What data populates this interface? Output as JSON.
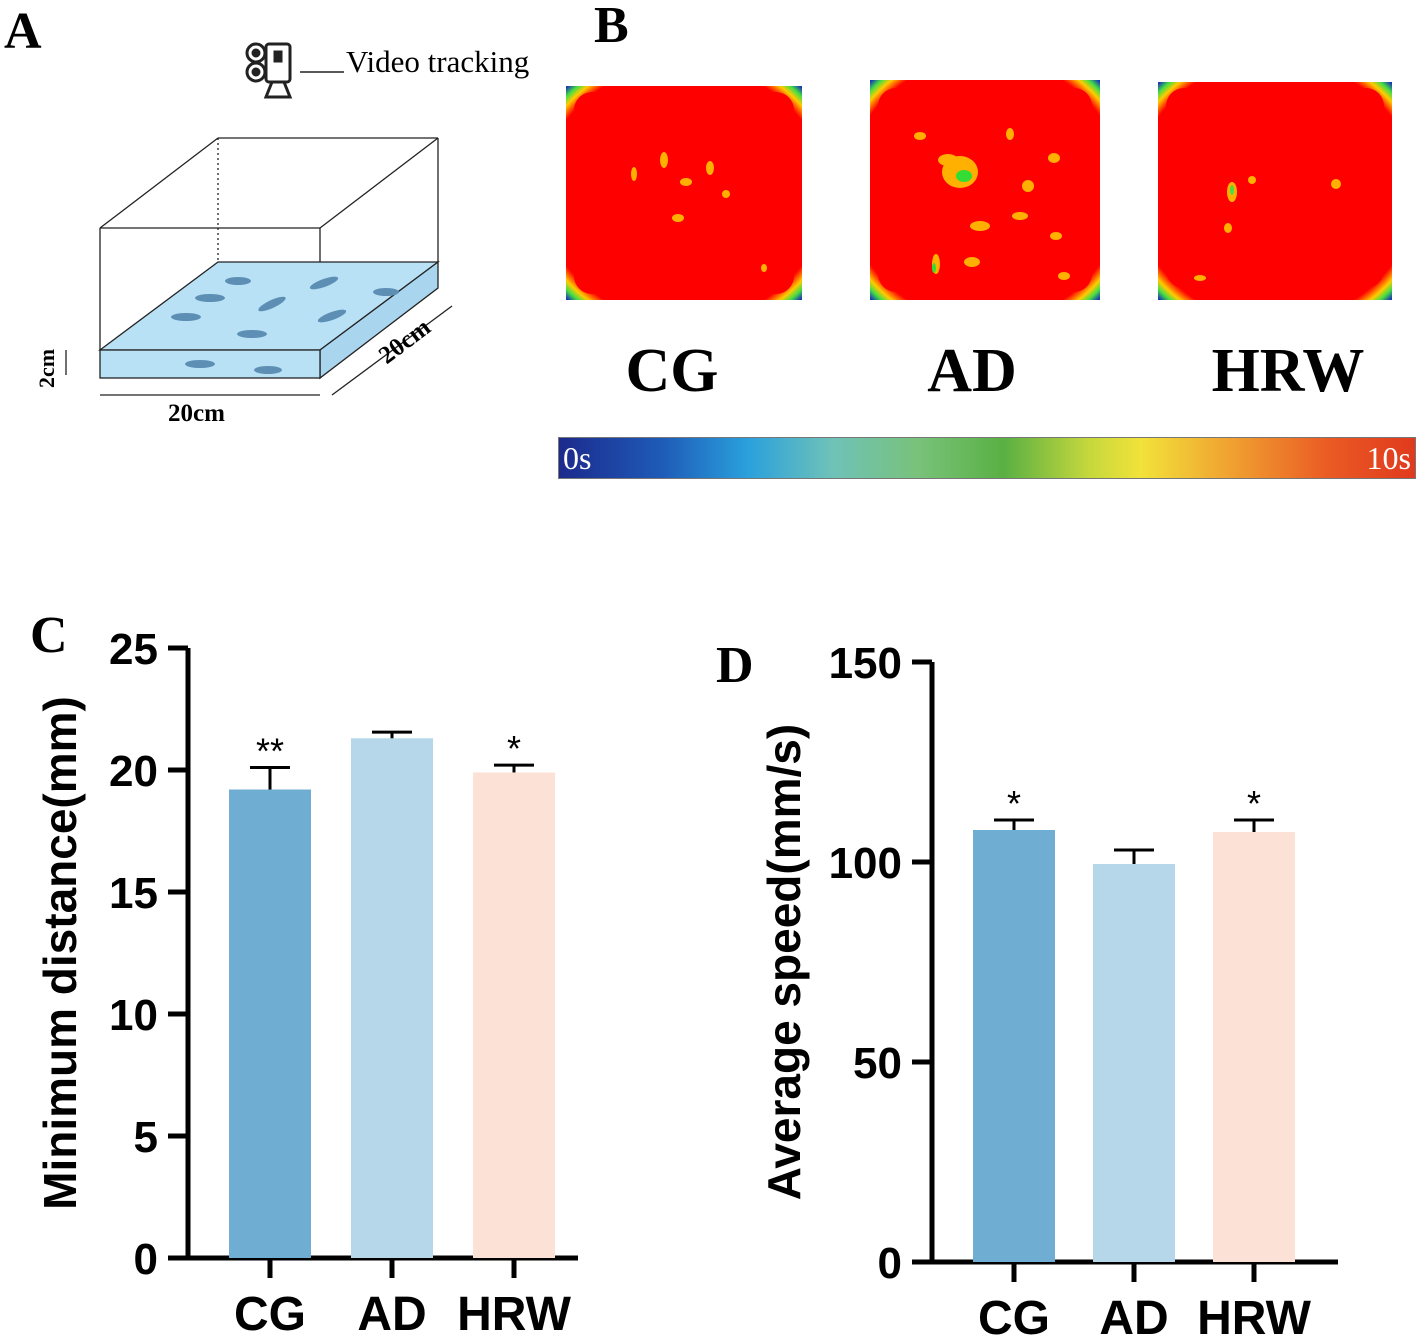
{
  "panels": {
    "a": {
      "letter": "A",
      "camera_label": "Video tracking",
      "tank_width_label": "20cm",
      "tank_depth_label": "20cm",
      "water_height_label": "2cm",
      "camera_icon": "video-camera-icon"
    },
    "b": {
      "letter": "B",
      "heatmaps": [
        "CG",
        "AD",
        "HRW"
      ],
      "colorbar": {
        "min_label": "0s",
        "max_label": "10s"
      }
    },
    "c": {
      "letter": "C"
    },
    "d": {
      "letter": "D"
    }
  },
  "colors": {
    "CG": "#6fadd2",
    "AD": "#b5d7e9",
    "HRW": "#fce2d6",
    "heat_hot": "#ff0000",
    "heat_cold": "#1a3cb0",
    "water": "#b9e1f5"
  },
  "chart_data": [
    {
      "type": "bar",
      "panel": "C",
      "categories": [
        "CG",
        "AD",
        "HRW"
      ],
      "values": [
        19.2,
        21.3,
        19.9
      ],
      "errors": [
        0.9,
        0.25,
        0.3
      ],
      "significance": [
        "**",
        "",
        "*"
      ],
      "ylabel": "Minimum distance(mm)",
      "ylim": [
        0,
        25
      ],
      "yticks": [
        0,
        5,
        10,
        15,
        20,
        25
      ]
    },
    {
      "type": "bar",
      "panel": "D",
      "categories": [
        "CG",
        "AD",
        "HRW"
      ],
      "values": [
        108,
        99.5,
        107.5
      ],
      "errors": [
        2.5,
        3.5,
        3
      ],
      "significance": [
        "*",
        "",
        "*"
      ],
      "ylabel": "Average speed(mm/s)",
      "ylim": [
        0,
        150
      ],
      "yticks": [
        0,
        50,
        100,
        150
      ]
    }
  ]
}
